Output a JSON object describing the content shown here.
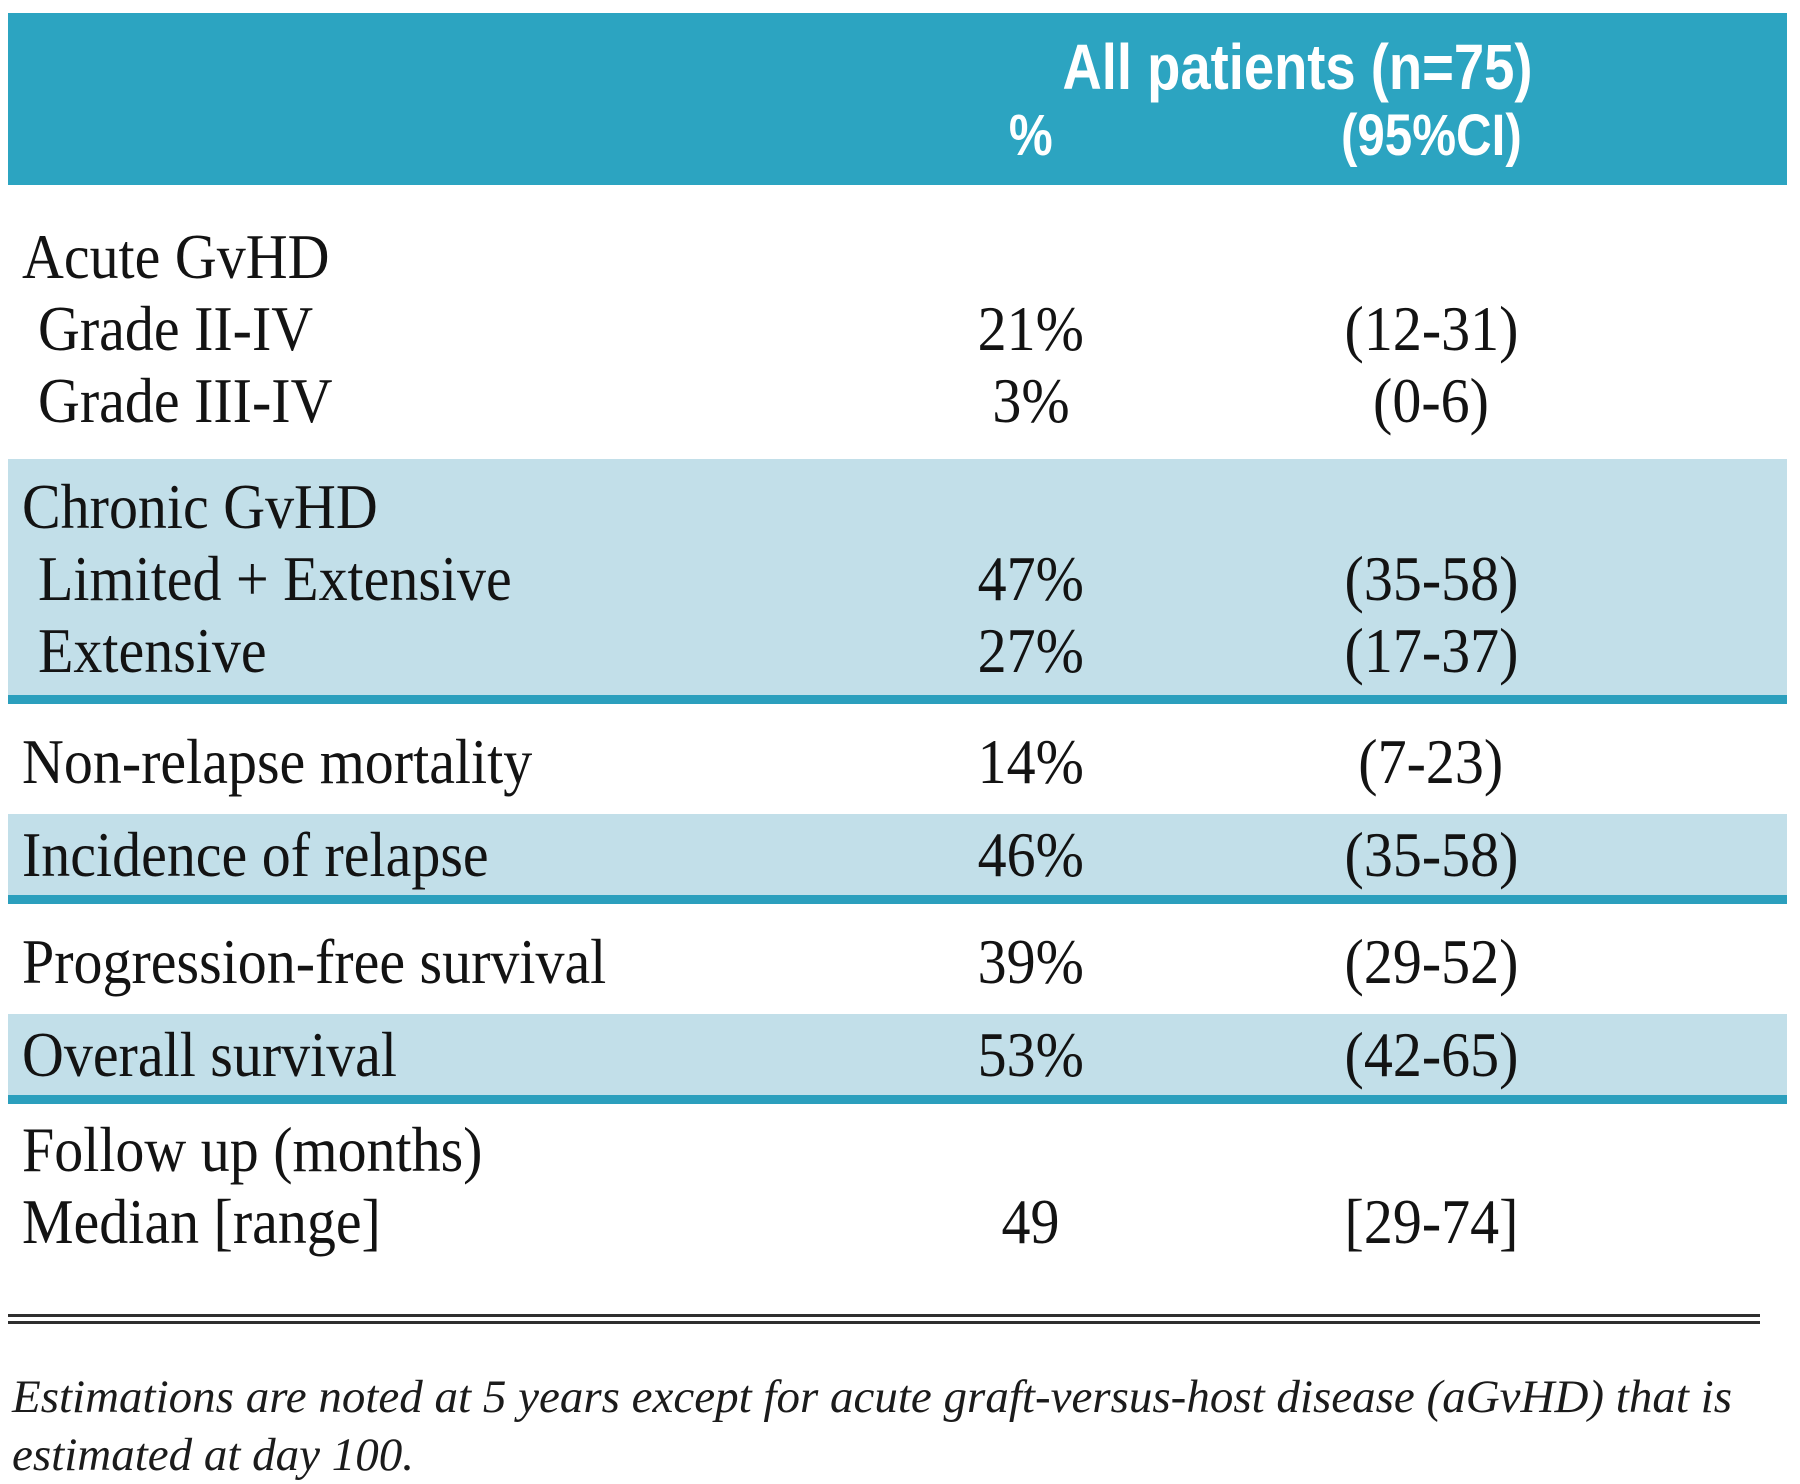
{
  "table": {
    "header": {
      "group": "All patients (n=75)",
      "percent": "%",
      "ci": "(95%CI)"
    },
    "sections": [
      {
        "name": "acute-gvhd",
        "rows": [
          {
            "label": "Acute GvHD"
          },
          {
            "label": "Grade II-IV",
            "percent": "21%",
            "ci": "(12-31)"
          },
          {
            "label": "Grade III-IV",
            "percent": "3%",
            "ci": "(0-6)"
          }
        ]
      },
      {
        "name": "chronic-gvhd",
        "rows": [
          {
            "label": "Chronic GvHD"
          },
          {
            "label": "Limited + Extensive",
            "percent": "47%",
            "ci": "(35-58)"
          },
          {
            "label": "Extensive",
            "percent": "27%",
            "ci": "(17-37)"
          }
        ]
      },
      {
        "name": "non-relapse-mortality",
        "rows": [
          {
            "label": "Non-relapse mortality",
            "percent": "14%",
            "ci": "(7-23)"
          }
        ]
      },
      {
        "name": "incidence-of-relapse",
        "rows": [
          {
            "label": "Incidence of relapse",
            "percent": "46%",
            "ci": "(35-58)"
          }
        ]
      },
      {
        "name": "progression-free-survival",
        "rows": [
          {
            "label": "Progression-free survival",
            "percent": "39%",
            "ci": "(29-52)"
          }
        ]
      },
      {
        "name": "overall-survival",
        "rows": [
          {
            "label": "Overall survival",
            "percent": "53%",
            "ci": "(42-65)"
          }
        ]
      },
      {
        "name": "follow-up",
        "rows": [
          {
            "label": "Follow up (months)"
          },
          {
            "label": "Median [range]",
            "percent": "49",
            "ci": "[29-74]"
          }
        ]
      }
    ]
  },
  "footnote": {
    "text": "Estimations are noted at 5 years except for acute graft-versus-host disease (aGvHD) that is estimated at day 100."
  },
  "colors": {
    "header_teal": "#2CA4C1",
    "section_blue": "#C2DFE9",
    "section_rule_teal": "#2B9FBD",
    "bottom_rule_dark": "#2E2E2E"
  }
}
